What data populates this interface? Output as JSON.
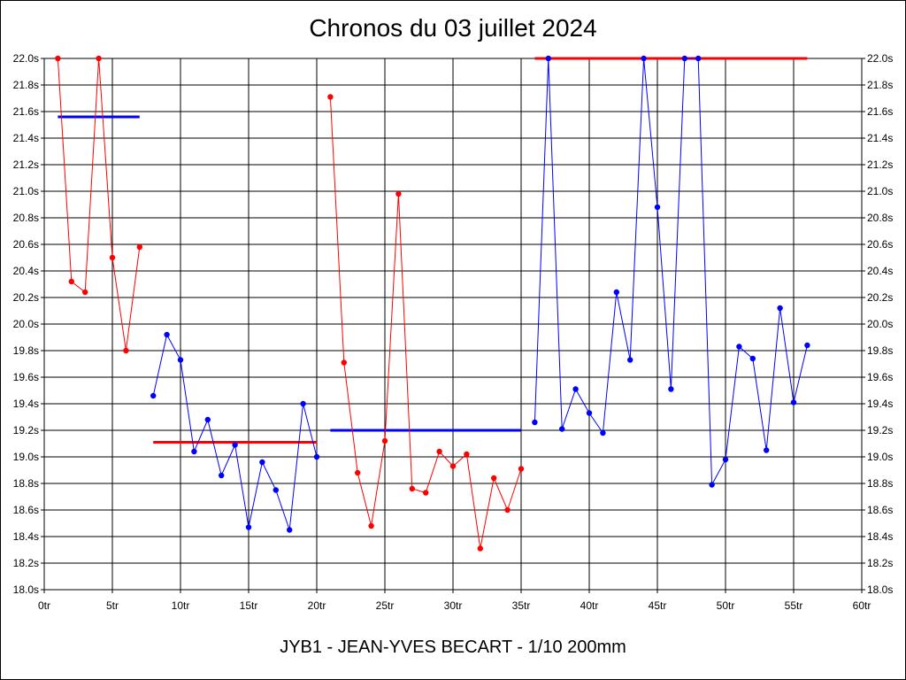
{
  "chart_data": {
    "type": "line",
    "title": "Chronos du 03 juillet 2024",
    "subtitle": "JYB1 - JEAN-YVES BECART - 1/10 200mm",
    "xlabel": "",
    "ylabel": "",
    "xlim": [
      0,
      60
    ],
    "ylim": [
      18.0,
      22.0
    ],
    "x_ticks": [
      0,
      5,
      10,
      15,
      20,
      25,
      30,
      35,
      40,
      45,
      50,
      55,
      60
    ],
    "x_tick_labels": [
      "0tr",
      "5tr",
      "10tr",
      "15tr",
      "20tr",
      "25tr",
      "30tr",
      "35tr",
      "40tr",
      "45tr",
      "50tr",
      "55tr",
      "60tr"
    ],
    "y_ticks": [
      18.0,
      18.2,
      18.4,
      18.6,
      18.8,
      19.0,
      19.2,
      19.4,
      19.6,
      19.8,
      20.0,
      20.2,
      20.4,
      20.6,
      20.8,
      21.0,
      21.2,
      21.4,
      21.6,
      21.8,
      22.0
    ],
    "y_tick_labels": [
      "18.0s",
      "18.2s",
      "18.4s",
      "18.6s",
      "18.8s",
      "19.0s",
      "19.2s",
      "19.4s",
      "19.6s",
      "19.8s",
      "20.0s",
      "20.2s",
      "20.4s",
      "20.6s",
      "20.8s",
      "21.0s",
      "21.2s",
      "21.4s",
      "21.6s",
      "21.8s",
      "22.0s"
    ],
    "grid": true,
    "series": [
      {
        "color": "#ff0000",
        "x": [
          1,
          2,
          3,
          4,
          5,
          6,
          7
        ],
        "y": [
          22.0,
          20.32,
          20.24,
          22.0,
          20.5,
          19.8,
          20.58
        ]
      },
      {
        "color": "#0000ff",
        "x": [
          8,
          9,
          10,
          11,
          12,
          13,
          14,
          15,
          16,
          17,
          18,
          19,
          20
        ],
        "y": [
          19.46,
          19.92,
          19.73,
          19.04,
          19.28,
          18.86,
          19.09,
          18.47,
          18.96,
          18.75,
          18.45,
          19.4,
          19.0
        ]
      },
      {
        "color": "#ff0000",
        "x": [
          21,
          22,
          23,
          24,
          25,
          26,
          27,
          28,
          29,
          30,
          31,
          32,
          33,
          34,
          35
        ],
        "y": [
          21.71,
          19.71,
          18.88,
          18.48,
          19.12,
          20.98,
          18.76,
          18.73,
          19.04,
          18.93,
          19.02,
          18.31,
          18.84,
          18.6,
          18.91
        ]
      },
      {
        "color": "#0000ff",
        "x": [
          36,
          37,
          38,
          39,
          40,
          41,
          42,
          43,
          44,
          45,
          46,
          47,
          48,
          49,
          50,
          51,
          52,
          53,
          54,
          55,
          56
        ],
        "y": [
          19.26,
          22.0,
          19.21,
          19.51,
          19.33,
          19.18,
          20.24,
          19.73,
          22.0,
          20.88,
          19.51,
          22.0,
          22.0,
          18.79,
          18.98,
          19.83,
          19.74,
          19.05,
          20.12,
          19.41,
          19.84
        ]
      }
    ],
    "reference_lines": [
      {
        "color": "#0000ff",
        "x_start": 1,
        "x_end": 7,
        "y": 21.56
      },
      {
        "color": "#ff0000",
        "x_start": 8,
        "x_end": 20,
        "y": 19.11
      },
      {
        "color": "#0000ff",
        "x_start": 21,
        "x_end": 35,
        "y": 19.2
      },
      {
        "color": "#ff0000",
        "x_start": 36,
        "x_end": 56,
        "y": 22.0
      }
    ]
  }
}
